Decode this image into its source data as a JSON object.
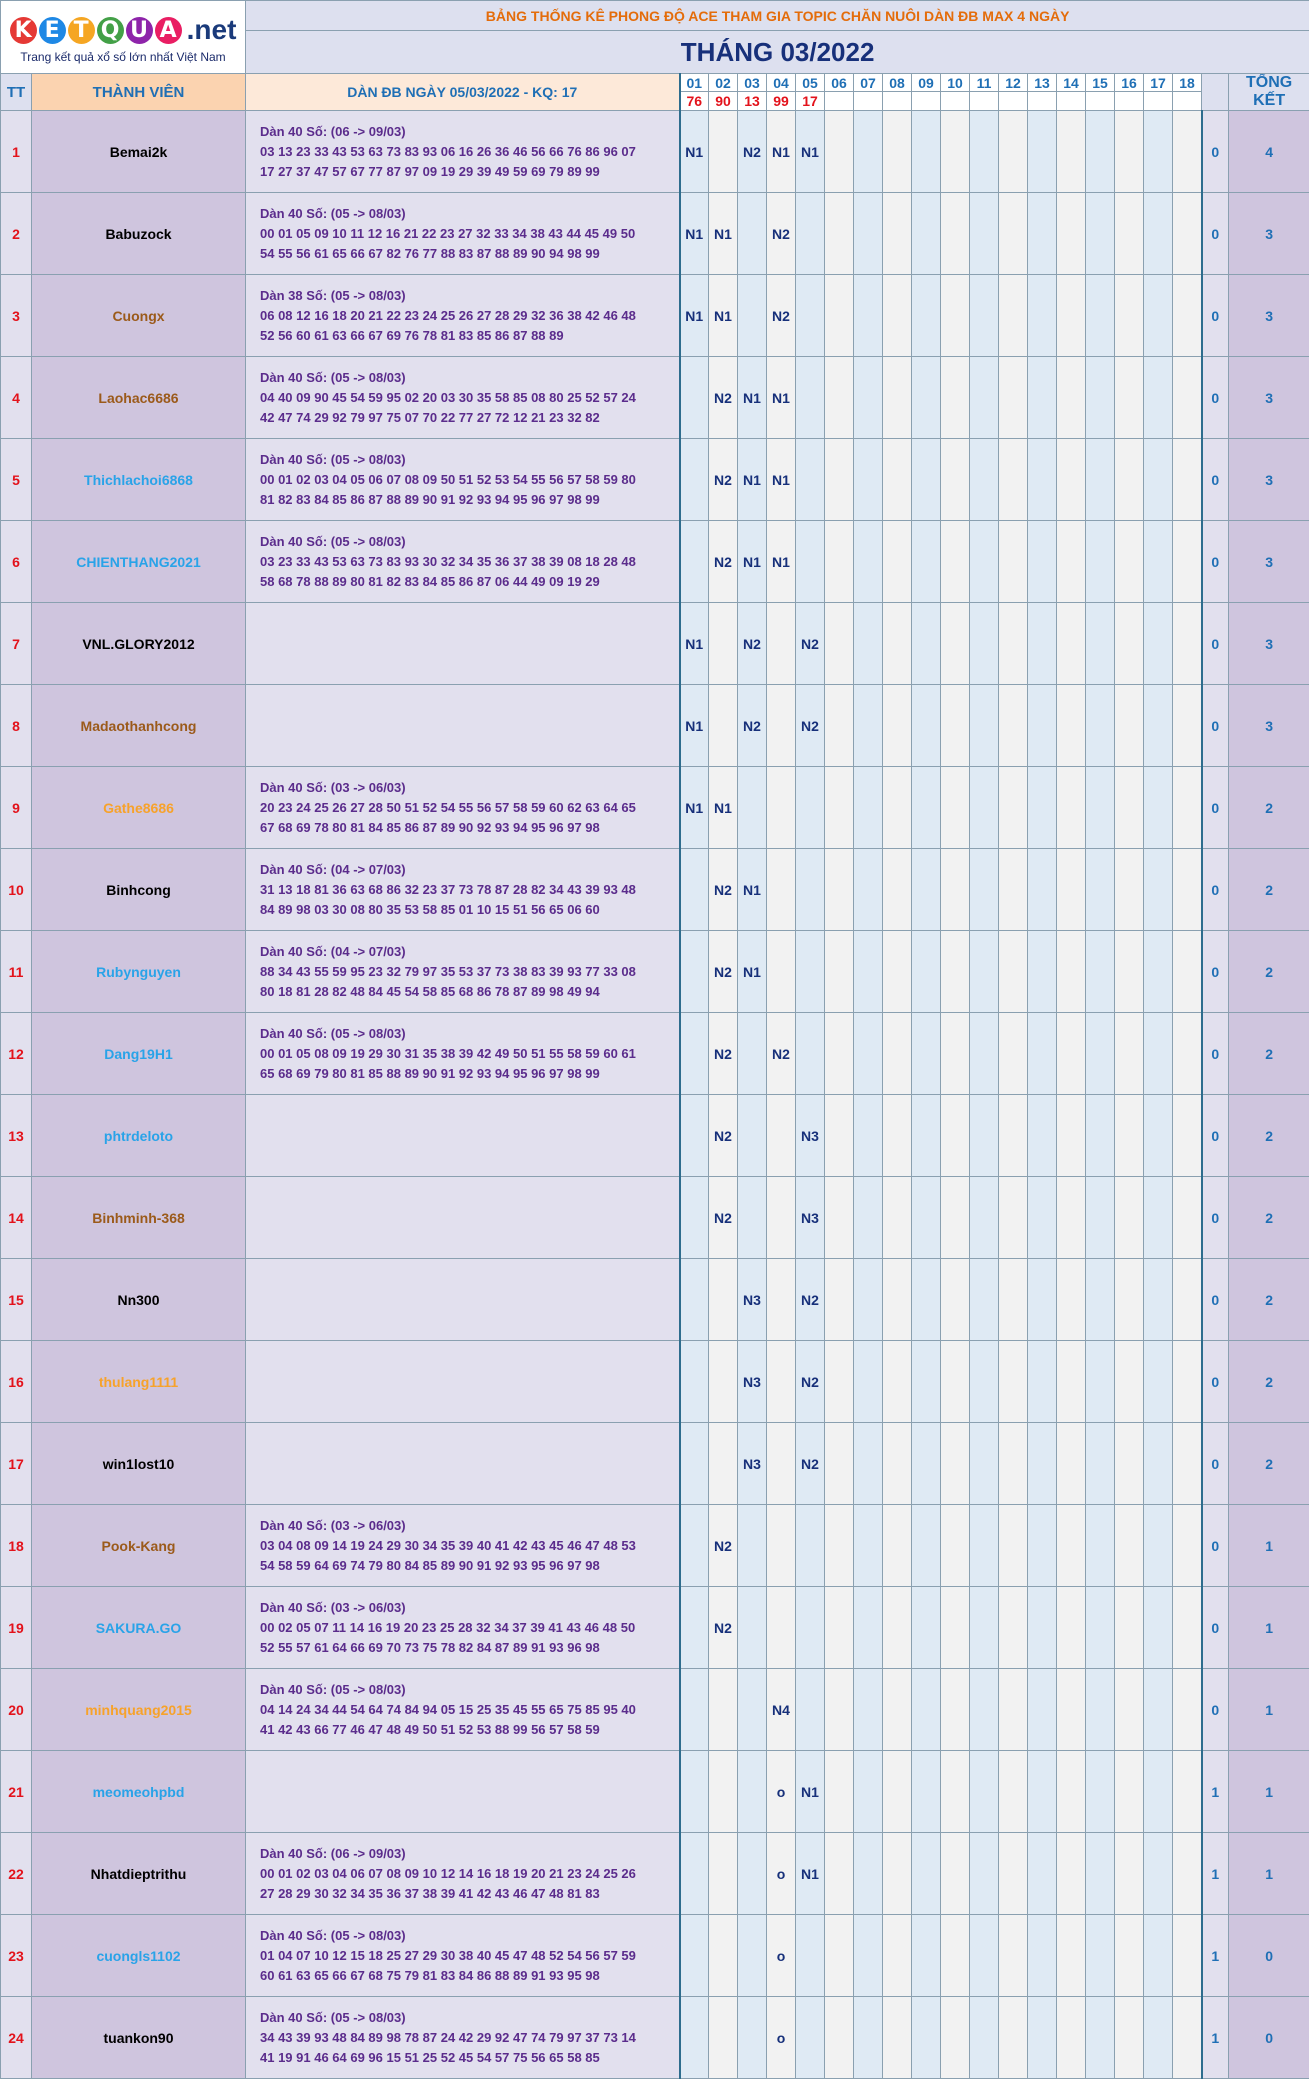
{
  "logo": {
    "letters": [
      "K",
      "E",
      "T",
      "Q",
      "U",
      "A"
    ],
    "letter_colors": [
      "#e53935",
      "#1e88e5",
      "#f5a623",
      "#43a047",
      "#8e24aa",
      "#e91e63"
    ],
    "suffix": ".net",
    "tagline": "Trang kết quả xổ số lớn nhất Việt Nam"
  },
  "banner": "BẢNG THỐNG KÊ PHONG ĐỘ ACE THAM GIA TOPIC CHĂN NUÔI DÀN ĐB MAX 4 NGÀY",
  "month_title": "THÁNG 03/2022",
  "headers": {
    "tt": "TT",
    "member": "THÀNH VIÊN",
    "dan": "DÀN ĐB NGÀY 05/03/2022 - KQ: 17",
    "total": "TỔNG KẾT"
  },
  "days": [
    "01",
    "02",
    "03",
    "04",
    "05",
    "06",
    "07",
    "08",
    "09",
    "10",
    "11",
    "12",
    "13",
    "14",
    "15",
    "16",
    "17",
    "18"
  ],
  "results": [
    "76",
    "90",
    "13",
    "99",
    "17",
    "",
    "",
    "",
    "",
    "",
    "",
    "",
    "",
    "",
    "",
    "",
    "",
    ""
  ],
  "name_colors": {
    "black": "#000000",
    "brown": "#9b5a1a",
    "blue": "#29a3e8",
    "orange": "#f7a22a"
  },
  "rows": [
    {
      "tt": "1",
      "name": "Bemai2k",
      "color": "black",
      "dan_title": "Dàn 40 Số: (06 -> 09/03)",
      "dan_line1": "03 13 23 33 43 53 63 73 83 93 06 16 26 36 46 56 66 76 86 96 07",
      "dan_line2": "17 27 37 47 57 67 77 87 97 09 19 29 39 49 59 69 79 89 99",
      "marks": [
        "N1",
        "",
        "N2",
        "N1",
        "N1",
        "",
        "",
        "",
        "",
        "",
        "",
        "",
        "",
        "",
        "",
        "",
        "",
        ""
      ],
      "miss": "0",
      "total": "4"
    },
    {
      "tt": "2",
      "name": "Babuzock",
      "color": "black",
      "dan_title": "Dàn 40 Số: (05 -> 08/03)",
      "dan_line1": "00 01 05 09 10 11 12 16 21 22 23 27 32 33 34 38 43 44 45 49 50",
      "dan_line2": "54 55 56 61 65 66 67 82 76 77 88 83 87 88 89 90 94 98 99",
      "marks": [
        "N1",
        "N1",
        "",
        "N2",
        "",
        "",
        "",
        "",
        "",
        "",
        "",
        "",
        "",
        "",
        "",
        "",
        "",
        ""
      ],
      "miss": "0",
      "total": "3"
    },
    {
      "tt": "3",
      "name": "Cuongx",
      "color": "brown",
      "dan_title": "Dàn 38 Số: (05 -> 08/03)",
      "dan_line1": "06 08 12 16 18 20 21 22 23 24 25 26 27 28 29 32 36 38 42 46 48",
      "dan_line2": "52 56 60 61 63 66 67 69 76 78 81 83 85 86 87 88 89",
      "marks": [
        "N1",
        "N1",
        "",
        "N2",
        "",
        "",
        "",
        "",
        "",
        "",
        "",
        "",
        "",
        "",
        "",
        "",
        "",
        ""
      ],
      "miss": "0",
      "total": "3"
    },
    {
      "tt": "4",
      "name": "Laohac6686",
      "color": "brown",
      "dan_title": "Dàn 40 Số: (05 -> 08/03)",
      "dan_line1": "04 40 09 90 45 54 59 95 02 20 03 30 35 58 85 08 80 25 52 57 24",
      "dan_line2": "42 47 74 29 92 79 97 75 07 70 22 77 27 72 12 21 23 32 82",
      "marks": [
        "",
        "N2",
        "N1",
        "N1",
        "",
        "",
        "",
        "",
        "",
        "",
        "",
        "",
        "",
        "",
        "",
        "",
        "",
        ""
      ],
      "miss": "0",
      "total": "3"
    },
    {
      "tt": "5",
      "name": "Thichlachoi6868",
      "color": "blue",
      "dan_title": "Dàn 40 Số: (05 -> 08/03)",
      "dan_line1": "00 01 02 03 04 05 06 07 08 09 50 51 52 53 54 55 56 57 58 59 80",
      "dan_line2": "81 82 83 84 85 86 87 88 89 90 91 92 93 94 95 96 97 98 99",
      "marks": [
        "",
        "N2",
        "N1",
        "N1",
        "",
        "",
        "",
        "",
        "",
        "",
        "",
        "",
        "",
        "",
        "",
        "",
        "",
        ""
      ],
      "miss": "0",
      "total": "3"
    },
    {
      "tt": "6",
      "name": "CHIENTHANG2021",
      "color": "blue",
      "dan_title": "Dàn 40 Số: (05 -> 08/03)",
      "dan_line1": "03 23 33 43 53 63 73 83 93 30 32 34 35 36 37 38 39 08 18 28 48",
      "dan_line2": "58 68 78 88 89 80 81 82 83 84 85 86 87 06 44 49 09 19 29",
      "marks": [
        "",
        "N2",
        "N1",
        "N1",
        "",
        "",
        "",
        "",
        "",
        "",
        "",
        "",
        "",
        "",
        "",
        "",
        "",
        ""
      ],
      "miss": "0",
      "total": "3"
    },
    {
      "tt": "7",
      "name": "VNL.GLORY2012",
      "color": "black",
      "dan_title": "",
      "dan_line1": "",
      "dan_line2": "",
      "marks": [
        "N1",
        "",
        "N2",
        "",
        "N2",
        "",
        "",
        "",
        "",
        "",
        "",
        "",
        "",
        "",
        "",
        "",
        "",
        ""
      ],
      "miss": "0",
      "total": "3"
    },
    {
      "tt": "8",
      "name": "Madaothanhcong",
      "color": "brown",
      "dan_title": "",
      "dan_line1": "",
      "dan_line2": "",
      "marks": [
        "N1",
        "",
        "N2",
        "",
        "N2",
        "",
        "",
        "",
        "",
        "",
        "",
        "",
        "",
        "",
        "",
        "",
        "",
        ""
      ],
      "miss": "0",
      "total": "3"
    },
    {
      "tt": "9",
      "name": "Gathe8686",
      "color": "orange",
      "dan_title": "Dàn 40 Số: (03 -> 06/03)",
      "dan_line1": "20 23 24 25 26 27 28 50 51 52 54 55 56 57 58 59 60 62 63 64 65",
      "dan_line2": "67 68 69 78 80 81 84 85 86 87 89 90 92 93 94 95 96 97 98",
      "marks": [
        "N1",
        "N1",
        "",
        "",
        "",
        "",
        "",
        "",
        "",
        "",
        "",
        "",
        "",
        "",
        "",
        "",
        "",
        ""
      ],
      "miss": "0",
      "total": "2"
    },
    {
      "tt": "10",
      "name": "Binhcong",
      "color": "black",
      "dan_title": "Dàn 40 Số: (04 -> 07/03)",
      "dan_line1": "31 13 18 81 36 63 68 86 32 23 37 73 78 87 28 82 34 43 39 93 48",
      "dan_line2": "84 89 98 03 30 08 80 35 53 58 85 01 10 15 51 56 65 06 60",
      "marks": [
        "",
        "N2",
        "N1",
        "",
        "",
        "",
        "",
        "",
        "",
        "",
        "",
        "",
        "",
        "",
        "",
        "",
        "",
        ""
      ],
      "miss": "0",
      "total": "2"
    },
    {
      "tt": "11",
      "name": "Rubynguyen",
      "color": "blue",
      "dan_title": "Dàn 40 Số: (04 -> 07/03)",
      "dan_line1": "88 34 43 55 59 95 23 32 79 97 35 53 37 73 38 83 39 93 77 33 08",
      "dan_line2": "80 18 81 28 82 48 84 45 54 58 85 68 86 78 87 89 98 49 94",
      "marks": [
        "",
        "N2",
        "N1",
        "",
        "",
        "",
        "",
        "",
        "",
        "",
        "",
        "",
        "",
        "",
        "",
        "",
        "",
        ""
      ],
      "miss": "0",
      "total": "2"
    },
    {
      "tt": "12",
      "name": "Dang19H1",
      "color": "blue",
      "dan_title": "Dàn 40 Số: (05 -> 08/03)",
      "dan_line1": "00 01 05 08 09 19 29 30 31 35 38 39 42 49 50 51 55 58 59 60 61",
      "dan_line2": "65 68 69 79 80 81 85 88 89 90 91 92 93 94 95 96 97 98 99",
      "marks": [
        "",
        "N2",
        "",
        "N2",
        "",
        "",
        "",
        "",
        "",
        "",
        "",
        "",
        "",
        "",
        "",
        "",
        "",
        ""
      ],
      "miss": "0",
      "total": "2"
    },
    {
      "tt": "13",
      "name": "phtrdeloto",
      "color": "blue",
      "dan_title": "",
      "dan_line1": "",
      "dan_line2": "",
      "marks": [
        "",
        "N2",
        "",
        "",
        "N3",
        "",
        "",
        "",
        "",
        "",
        "",
        "",
        "",
        "",
        "",
        "",
        "",
        ""
      ],
      "miss": "0",
      "total": "2"
    },
    {
      "tt": "14",
      "name": "Binhminh-368",
      "color": "brown",
      "dan_title": "",
      "dan_line1": "",
      "dan_line2": "",
      "marks": [
        "",
        "N2",
        "",
        "",
        "N3",
        "",
        "",
        "",
        "",
        "",
        "",
        "",
        "",
        "",
        "",
        "",
        "",
        ""
      ],
      "miss": "0",
      "total": "2"
    },
    {
      "tt": "15",
      "name": "Nn300",
      "color": "black",
      "dan_title": "",
      "dan_line1": "",
      "dan_line2": "",
      "marks": [
        "",
        "",
        "N3",
        "",
        "N2",
        "",
        "",
        "",
        "",
        "",
        "",
        "",
        "",
        "",
        "",
        "",
        "",
        ""
      ],
      "miss": "0",
      "total": "2"
    },
    {
      "tt": "16",
      "name": "thulang1111",
      "color": "orange",
      "dan_title": "",
      "dan_line1": "",
      "dan_line2": "",
      "marks": [
        "",
        "",
        "N3",
        "",
        "N2",
        "",
        "",
        "",
        "",
        "",
        "",
        "",
        "",
        "",
        "",
        "",
        "",
        ""
      ],
      "miss": "0",
      "total": "2"
    },
    {
      "tt": "17",
      "name": "win1lost10",
      "color": "black",
      "dan_title": "",
      "dan_line1": "",
      "dan_line2": "",
      "marks": [
        "",
        "",
        "N3",
        "",
        "N2",
        "",
        "",
        "",
        "",
        "",
        "",
        "",
        "",
        "",
        "",
        "",
        "",
        ""
      ],
      "miss": "0",
      "total": "2"
    },
    {
      "tt": "18",
      "name": "Pook-Kang",
      "color": "brown",
      "dan_title": "Dàn 40 Số: (03 -> 06/03)",
      "dan_line1": "03 04 08 09 14 19 24 29 30 34 35 39 40 41 42 43 45 46 47 48 53",
      "dan_line2": "54 58 59 64 69 74 79 80 84 85 89 90 91 92 93 95 96 97 98",
      "marks": [
        "",
        "N2",
        "",
        "",
        "",
        "",
        "",
        "",
        "",
        "",
        "",
        "",
        "",
        "",
        "",
        "",
        "",
        ""
      ],
      "miss": "0",
      "total": "1"
    },
    {
      "tt": "19",
      "name": "SAKURA.GO",
      "color": "blue",
      "dan_title": "Dàn 40 Số: (03 -> 06/03)",
      "dan_line1": "00 02 05 07 11 14 16 19 20 23 25 28 32 34 37 39 41 43 46 48 50",
      "dan_line2": "52 55 57 61 64 66 69 70 73 75 78 82 84 87 89 91 93 96 98",
      "marks": [
        "",
        "N2",
        "",
        "",
        "",
        "",
        "",
        "",
        "",
        "",
        "",
        "",
        "",
        "",
        "",
        "",
        "",
        ""
      ],
      "miss": "0",
      "total": "1"
    },
    {
      "tt": "20",
      "name": "minhquang2015",
      "color": "orange",
      "dan_title": "Dàn 40 Số: (05 -> 08/03)",
      "dan_line1": "04 14 24 34 44 54 64 74 84 94 05 15 25 35 45 55 65 75 85 95 40",
      "dan_line2": "41 42 43 66 77 46 47 48 49 50 51 52 53 88 99 56 57 58 59",
      "marks": [
        "",
        "",
        "",
        "N4",
        "",
        "",
        "",
        "",
        "",
        "",
        "",
        "",
        "",
        "",
        "",
        "",
        "",
        ""
      ],
      "miss": "0",
      "total": "1"
    },
    {
      "tt": "21",
      "name": "meomeohpbd",
      "color": "blue",
      "dan_title": "",
      "dan_line1": "",
      "dan_line2": "",
      "marks": [
        "",
        "",
        "",
        "o",
        "N1",
        "",
        "",
        "",
        "",
        "",
        "",
        "",
        "",
        "",
        "",
        "",
        "",
        ""
      ],
      "miss": "1",
      "total": "1"
    },
    {
      "tt": "22",
      "name": "Nhatdieptrithu",
      "color": "black",
      "dan_title": "Dàn 40 Số: (06 -> 09/03)",
      "dan_line1": "00 01 02 03 04 06 07 08 09 10 12 14 16 18 19 20 21 23 24 25 26",
      "dan_line2": "27 28 29 30 32 34 35 36 37 38 39 41 42 43 46 47 48 81 83",
      "marks": [
        "",
        "",
        "",
        "o",
        "N1",
        "",
        "",
        "",
        "",
        "",
        "",
        "",
        "",
        "",
        "",
        "",
        "",
        ""
      ],
      "miss": "1",
      "total": "1"
    },
    {
      "tt": "23",
      "name": "cuongls1102",
      "color": "blue",
      "dan_title": "Dàn 40 Số: (05 -> 08/03)",
      "dan_line1": "01 04 07 10 12 15 18 25 27 29 30 38 40 45 47 48 52 54 56 57 59",
      "dan_line2": "60 61 63 65 66 67 68 75 79 81 83 84 86 88 89 91 93 95 98",
      "marks": [
        "",
        "",
        "",
        "o",
        "",
        "",
        "",
        "",
        "",
        "",
        "",
        "",
        "",
        "",
        "",
        "",
        "",
        ""
      ],
      "miss": "1",
      "total": "0"
    },
    {
      "tt": "24",
      "name": "tuankon90",
      "color": "black",
      "dan_title": "Dàn 40 Số: (05 -> 08/03)",
      "dan_line1": "34 43 39 93 48 84 89 98 78 87 24 42 29 92 47 74 79 97 37 73 14",
      "dan_line2": "41 19 91 46 64 69 96 15 51 25 52 45 54 57 75 56 65 58 85",
      "marks": [
        "",
        "",
        "",
        "o",
        "",
        "",
        "",
        "",
        "",
        "",
        "",
        "",
        "",
        "",
        "",
        "",
        "",
        ""
      ],
      "miss": "1",
      "total": "0"
    }
  ]
}
